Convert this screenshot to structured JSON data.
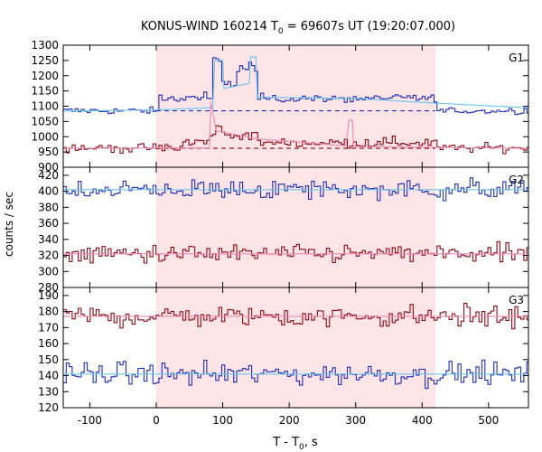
{
  "title_main": "KONUS-WIND 160214 T",
  "title_sub": "0",
  "title_rest": " = 69607s UT (19:20:07.000)",
  "ylabel": "counts / sec",
  "xlabel_main": "T - T",
  "xlabel_sub": "0",
  "xlabel_rest": ", s",
  "colors": {
    "shade": "#fde4e6",
    "blue": "#1f2fb0",
    "red": "#8b0a14",
    "light_blue": "#6cc4f0",
    "pink": "#e98ab8",
    "bg_blue": "#1f2fb0",
    "bg_red": "#8b0a14"
  },
  "chart_data": {
    "type": "line",
    "x_range": [
      -140,
      560
    ],
    "x_ticks": [
      -100,
      0,
      100,
      200,
      300,
      400,
      500
    ],
    "x_tick_labels": [
      "-100",
      "0",
      "100",
      "200",
      "300",
      "400",
      "500"
    ],
    "shaded_interval": [
      0,
      420
    ],
    "bin_width": 2.944,
    "panels": [
      {
        "name": "G1",
        "ylim": [
          900,
          1300
        ],
        "yticks": [
          900,
          950,
          1000,
          1050,
          1100,
          1150,
          1200,
          1250,
          1300
        ],
        "ytick_labels": [
          "900",
          "950",
          "1000",
          "1050",
          "1100",
          "1150",
          "1200",
          "1250",
          "1300"
        ],
        "background_levels": [
          1085,
          962
        ],
        "series": [
          {
            "name": "G1 counts (upper)",
            "color": "blue",
            "base": 1085,
            "noise": 8,
            "bumps": [
              [
                0,
                420,
                1118,
                1135
              ],
              [
                60,
                85,
                1118,
                1140
              ],
              [
                85,
                95,
                1250,
                1250
              ],
              [
                95,
                120,
                1165,
                1180
              ],
              [
                120,
                150,
                1210,
                1250
              ],
              [
                150,
                420,
                1120,
                1130
              ]
            ]
          },
          {
            "name": "G1 counts (lower)",
            "color": "red",
            "base": 963,
            "noise": 10,
            "bumps": [
              [
                40,
                80,
                975,
                990
              ],
              [
                80,
                88,
                1000,
                1000
              ],
              [
                88,
                95,
                1040,
                1040
              ],
              [
                95,
                150,
                1000,
                1010
              ],
              [
                150,
                420,
                975,
                985
              ]
            ]
          },
          {
            "name": "G1 fit (upper)",
            "color": "light_blue",
            "points": [
              [
                -140,
                1084
              ],
              [
                0,
                1088
              ],
              [
                85,
                1095
              ],
              [
                88,
                1250
              ],
              [
                100,
                1250
              ],
              [
                102,
                1158
              ],
              [
                140,
                1175
              ],
              [
                142,
                1262
              ],
              [
                150,
                1262
              ],
              [
                152,
                1130
              ],
              [
                300,
                1125
              ],
              [
                420,
                1110
              ],
              [
                560,
                1095
              ]
            ]
          },
          {
            "name": "G1 fit (lower)",
            "color": "pink",
            "points": [
              [
                -140,
                962
              ],
              [
                0,
                963
              ],
              [
                80,
                963
              ],
              [
                82,
                1115
              ],
              [
                90,
                1020
              ],
              [
                150,
                993
              ],
              [
                200,
                985
              ],
              [
                285,
                970
              ],
              [
                290,
                1055
              ],
              [
                295,
                1055
              ],
              [
                297,
                968
              ],
              [
                420,
                965
              ],
              [
                560,
                962
              ]
            ]
          }
        ]
      },
      {
        "name": "G2",
        "ylim": [
          280,
          430
        ],
        "yticks": [
          280,
          300,
          320,
          340,
          360,
          380,
          400,
          420
        ],
        "ytick_labels": [
          "280",
          "300",
          "320",
          "340",
          "360",
          "380",
          "400",
          "420"
        ],
        "background_levels": [],
        "series": [
          {
            "name": "G2 counts (upper)",
            "color": "blue",
            "base": 402,
            "noise": 9
          },
          {
            "name": "G2 counts (lower)",
            "color": "red",
            "base": 322,
            "noise": 8
          },
          {
            "name": "G2 fit (upper)",
            "color": "light_blue",
            "points": [
              [
                -140,
                402
              ],
              [
                560,
                402
              ]
            ]
          },
          {
            "name": "G2 fit (lower)",
            "color": "pink",
            "points": [
              [
                -140,
                322
              ],
              [
                560,
                322
              ]
            ]
          }
        ]
      },
      {
        "name": "G3",
        "ylim": [
          120,
          195
        ],
        "yticks": [
          120,
          130,
          140,
          150,
          160,
          170,
          180,
          190
        ],
        "ytick_labels": [
          "120",
          "130",
          "140",
          "150",
          "160",
          "170",
          "180",
          "190"
        ],
        "background_levels": [],
        "series": [
          {
            "name": "G3 counts (upper)",
            "color": "red",
            "base": 177,
            "noise": 5
          },
          {
            "name": "G3 counts (lower)",
            "color": "blue",
            "base": 141,
            "noise": 5
          },
          {
            "name": "G3 fit (upper)",
            "color": "pink",
            "points": [
              [
                -140,
                177
              ],
              [
                560,
                177
              ]
            ]
          },
          {
            "name": "G3 fit (lower)",
            "color": "light_blue",
            "points": [
              [
                -140,
                141
              ],
              [
                560,
                141
              ]
            ]
          }
        ]
      }
    ]
  }
}
